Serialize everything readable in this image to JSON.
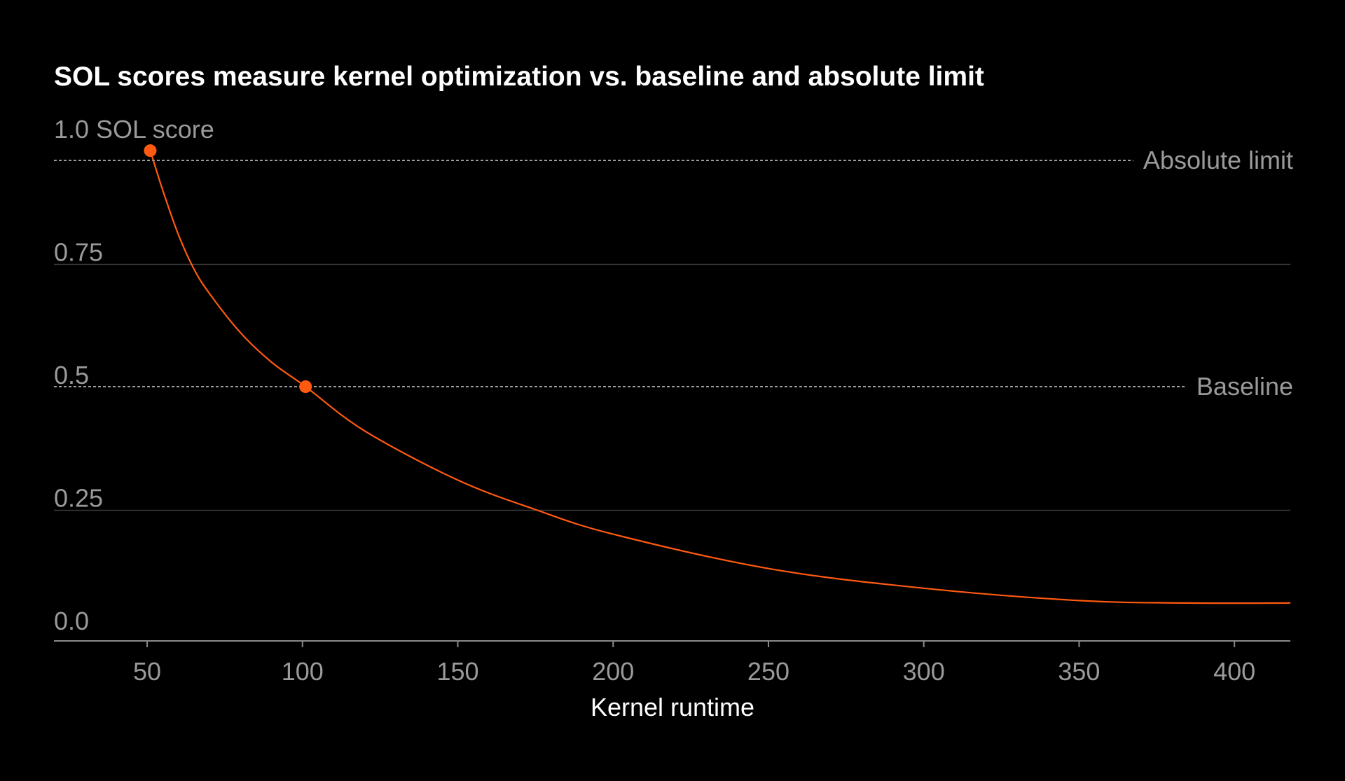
{
  "chart_data": {
    "type": "line",
    "title": "SOL scores measure kernel optimization vs. baseline and absolute limit",
    "xlabel": "Kernel runtime",
    "ylabel": "",
    "ylabel_top": "1.0 SOL score",
    "xlim": [
      20,
      418
    ],
    "ylim": [
      0,
      1.0
    ],
    "x_ticks": [
      50,
      100,
      150,
      200,
      250,
      300,
      350,
      400
    ],
    "y_ticks": [
      {
        "value": 1.0,
        "label": "1.0 SOL score"
      },
      {
        "value": 0.75,
        "label": "0.75"
      },
      {
        "value": 0.5,
        "label": "0.5"
      },
      {
        "value": 0.25,
        "label": "0.25"
      },
      {
        "value": 0.0,
        "label": "0.0"
      }
    ],
    "grid": true,
    "reference_lines": [
      {
        "name": "Absolute limit",
        "y": 0.9
      },
      {
        "name": "Baseline",
        "y": 0.5
      }
    ],
    "series": [
      {
        "color": "#ff5a10",
        "x": [
          51,
          55,
          60,
          65,
          70,
          80,
          90,
          101,
          120,
          150,
          175,
          200,
          250,
          300,
          350,
          385,
          418
        ],
        "y": [
          0.98,
          0.9,
          0.81,
          0.74,
          0.69,
          0.61,
          0.55,
          0.5,
          0.41,
          0.31,
          0.25,
          0.2,
          0.13,
          0.09,
          0.065,
          0.06,
          0.06
        ]
      }
    ],
    "highlight_points": [
      {
        "x": 51,
        "y": 0.98
      },
      {
        "x": 101,
        "y": 0.5
      }
    ]
  }
}
